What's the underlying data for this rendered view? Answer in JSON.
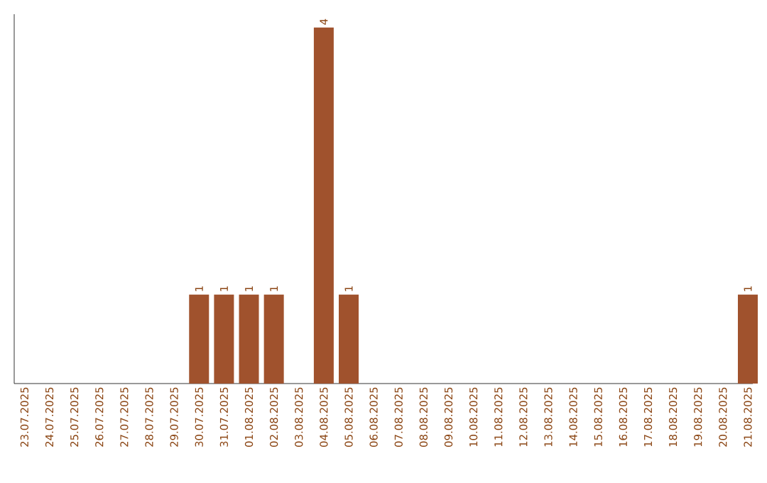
{
  "chart_data": {
    "type": "bar",
    "categories": [
      "23.07.2025",
      "24.07.2025",
      "25.07.2025",
      "26.07.2025",
      "27.07.2025",
      "28.07.2025",
      "29.07.2025",
      "30.07.2025",
      "31.07.2025",
      "01.08.2025",
      "02.08.2025",
      "03.08.2025",
      "04.08.2025",
      "05.08.2025",
      "06.08.2025",
      "07.08.2025",
      "08.08.2025",
      "09.08.2025",
      "10.08.2025",
      "11.08.2025",
      "12.08.2025",
      "13.08.2025",
      "14.08.2025",
      "15.08.2025",
      "16.08.2025",
      "17.08.2025",
      "18.08.2025",
      "19.08.2025",
      "20.08.2025",
      "21.08.2025"
    ],
    "values": [
      0,
      0,
      0,
      0,
      0,
      0,
      0,
      1,
      1,
      1,
      1,
      0,
      4,
      1,
      0,
      0,
      0,
      0,
      0,
      0,
      0,
      0,
      0,
      0,
      0,
      0,
      0,
      0,
      0,
      1
    ],
    "value_labels": [
      null,
      null,
      null,
      null,
      null,
      null,
      null,
      "1",
      "1",
      "1",
      "1",
      null,
      "4",
      "1",
      null,
      null,
      null,
      null,
      null,
      null,
      null,
      null,
      null,
      null,
      null,
      null,
      null,
      null,
      null,
      "1"
    ],
    "color": "#a0522d",
    "ylim": [
      0,
      4.15
    ],
    "tick_labels": "x"
  }
}
